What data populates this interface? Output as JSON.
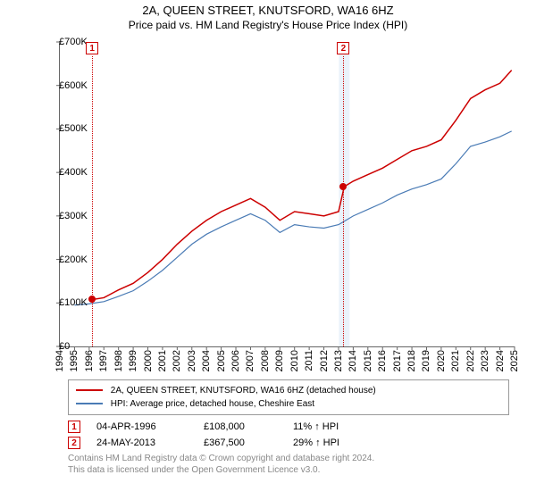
{
  "header": {
    "title": "2A, QUEEN STREET, KNUTSFORD, WA16 6HZ",
    "subtitle": "Price paid vs. HM Land Registry's House Price Index (HPI)"
  },
  "chart": {
    "type": "line",
    "background_color": "#ffffff",
    "axis_color": "#666666",
    "label_color": "#000000",
    "label_fontsize": 11,
    "x": {
      "min": 1994,
      "max": 2025
    },
    "y": {
      "min": 0,
      "max": 700000,
      "ticks": [
        0,
        100000,
        200000,
        300000,
        400000,
        500000,
        600000,
        700000
      ],
      "tick_labels": [
        "£0",
        "£100K",
        "£200K",
        "£300K",
        "£400K",
        "£500K",
        "£600K",
        "£700K"
      ]
    },
    "x_ticks": [
      1994,
      1995,
      1996,
      1997,
      1998,
      1999,
      2000,
      2001,
      2002,
      2003,
      2004,
      2005,
      2006,
      2007,
      2008,
      2009,
      2010,
      2011,
      2012,
      2013,
      2014,
      2015,
      2016,
      2017,
      2018,
      2019,
      2020,
      2021,
      2022,
      2023,
      2024,
      2025
    ],
    "series_property": {
      "label": "2A, QUEEN STREET, KNUTSFORD, WA16 6HZ (detached house)",
      "color": "#cc0000",
      "width": 1.5,
      "points": [
        [
          1996.26,
          108000
        ],
        [
          1997,
          112000
        ],
        [
          1998,
          130000
        ],
        [
          1999,
          145000
        ],
        [
          2000,
          170000
        ],
        [
          2001,
          200000
        ],
        [
          2002,
          235000
        ],
        [
          2003,
          265000
        ],
        [
          2004,
          290000
        ],
        [
          2005,
          310000
        ],
        [
          2006,
          325000
        ],
        [
          2007,
          340000
        ],
        [
          2008,
          320000
        ],
        [
          2009,
          290000
        ],
        [
          2010,
          310000
        ],
        [
          2011,
          305000
        ],
        [
          2012,
          300000
        ],
        [
          2013,
          310000
        ],
        [
          2013.39,
          367500
        ],
        [
          2014,
          380000
        ],
        [
          2015,
          395000
        ],
        [
          2016,
          410000
        ],
        [
          2017,
          430000
        ],
        [
          2018,
          450000
        ],
        [
          2019,
          460000
        ],
        [
          2020,
          475000
        ],
        [
          2021,
          520000
        ],
        [
          2022,
          570000
        ],
        [
          2023,
          590000
        ],
        [
          2024,
          605000
        ],
        [
          2024.8,
          635000
        ]
      ]
    },
    "series_hpi": {
      "label": "HPI: Average price, detached house, Cheshire East",
      "color": "#4a7bb5",
      "width": 1.2,
      "points": [
        [
          1995,
          95000
        ],
        [
          1996,
          98000
        ],
        [
          1997,
          103000
        ],
        [
          1998,
          115000
        ],
        [
          1999,
          128000
        ],
        [
          2000,
          150000
        ],
        [
          2001,
          175000
        ],
        [
          2002,
          205000
        ],
        [
          2003,
          235000
        ],
        [
          2004,
          258000
        ],
        [
          2005,
          275000
        ],
        [
          2006,
          290000
        ],
        [
          2007,
          305000
        ],
        [
          2008,
          290000
        ],
        [
          2009,
          262000
        ],
        [
          2010,
          280000
        ],
        [
          2011,
          275000
        ],
        [
          2012,
          272000
        ],
        [
          2013,
          280000
        ],
        [
          2014,
          300000
        ],
        [
          2015,
          315000
        ],
        [
          2016,
          330000
        ],
        [
          2017,
          348000
        ],
        [
          2018,
          362000
        ],
        [
          2019,
          372000
        ],
        [
          2020,
          385000
        ],
        [
          2021,
          420000
        ],
        [
          2022,
          460000
        ],
        [
          2023,
          470000
        ],
        [
          2024,
          482000
        ],
        [
          2024.8,
          495000
        ]
      ]
    },
    "markers": [
      {
        "num": "1",
        "x": 1996.26,
        "y": 108000,
        "dot_color": "#cc0000",
        "line": true
      },
      {
        "num": "2",
        "x": 2013.39,
        "y": 367500,
        "dot_color": "#cc0000",
        "line": true,
        "band": true
      }
    ],
    "band_color": "#eaf2fb"
  },
  "transactions": [
    {
      "num": "1",
      "date": "04-APR-1996",
      "price": "£108,000",
      "hpi": "11% ↑ HPI"
    },
    {
      "num": "2",
      "date": "24-MAY-2013",
      "price": "£367,500",
      "hpi": "29% ↑ HPI"
    }
  ],
  "footer": {
    "line1": "Contains HM Land Registry data © Crown copyright and database right 2024.",
    "line2": "This data is licensed under the Open Government Licence v3.0."
  }
}
